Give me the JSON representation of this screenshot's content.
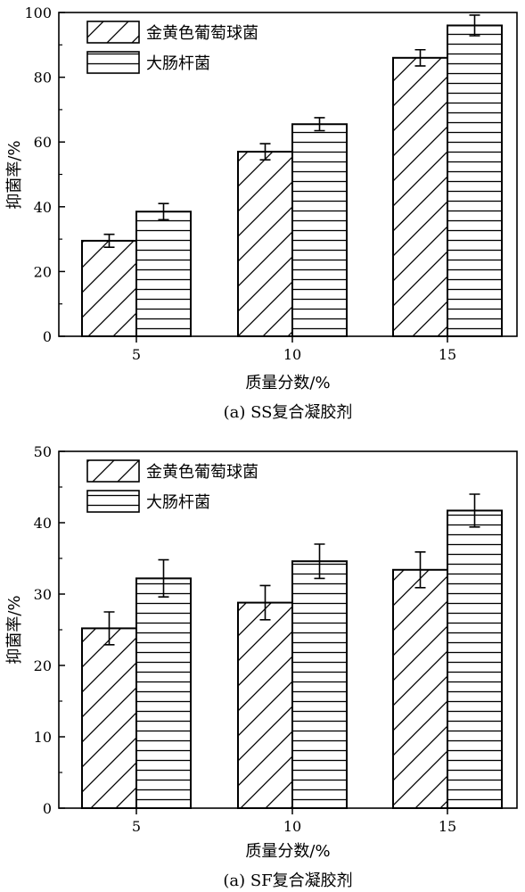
{
  "chart_data": [
    {
      "type": "bar",
      "caption": "(a) SS复合凝胶剂",
      "xlabel": "质量分数/%",
      "ylabel": "抑菌率/%",
      "categories": [
        "5",
        "10",
        "15"
      ],
      "ylim": [
        0,
        100
      ],
      "yticks": [
        0,
        20,
        40,
        60,
        80,
        100
      ],
      "legend_position": "top-left",
      "series": [
        {
          "name": "金黄色葡萄球菌",
          "pattern": "diagonal",
          "values": [
            29.5,
            57.0,
            86.0
          ],
          "errors": [
            2.0,
            2.5,
            2.5
          ]
        },
        {
          "name": "大肠杆菌",
          "pattern": "horizontal",
          "values": [
            38.5,
            65.5,
            96.0
          ],
          "errors": [
            2.5,
            2.0,
            3.2
          ]
        }
      ]
    },
    {
      "type": "bar",
      "caption": "(a) SF复合凝胶剂",
      "xlabel": "质量分数/%",
      "ylabel": "抑菌率/%",
      "categories": [
        "5",
        "10",
        "15"
      ],
      "ylim": [
        0,
        50
      ],
      "yticks": [
        0,
        10,
        20,
        30,
        40,
        50
      ],
      "legend_position": "top-left",
      "series": [
        {
          "name": "金黄色葡萄球菌",
          "pattern": "diagonal",
          "values": [
            25.2,
            28.8,
            33.4
          ],
          "errors": [
            2.3,
            2.4,
            2.5
          ]
        },
        {
          "name": "大肠杆菌",
          "pattern": "horizontal",
          "values": [
            32.2,
            34.6,
            41.7
          ],
          "errors": [
            2.6,
            2.4,
            2.3
          ]
        }
      ]
    }
  ]
}
